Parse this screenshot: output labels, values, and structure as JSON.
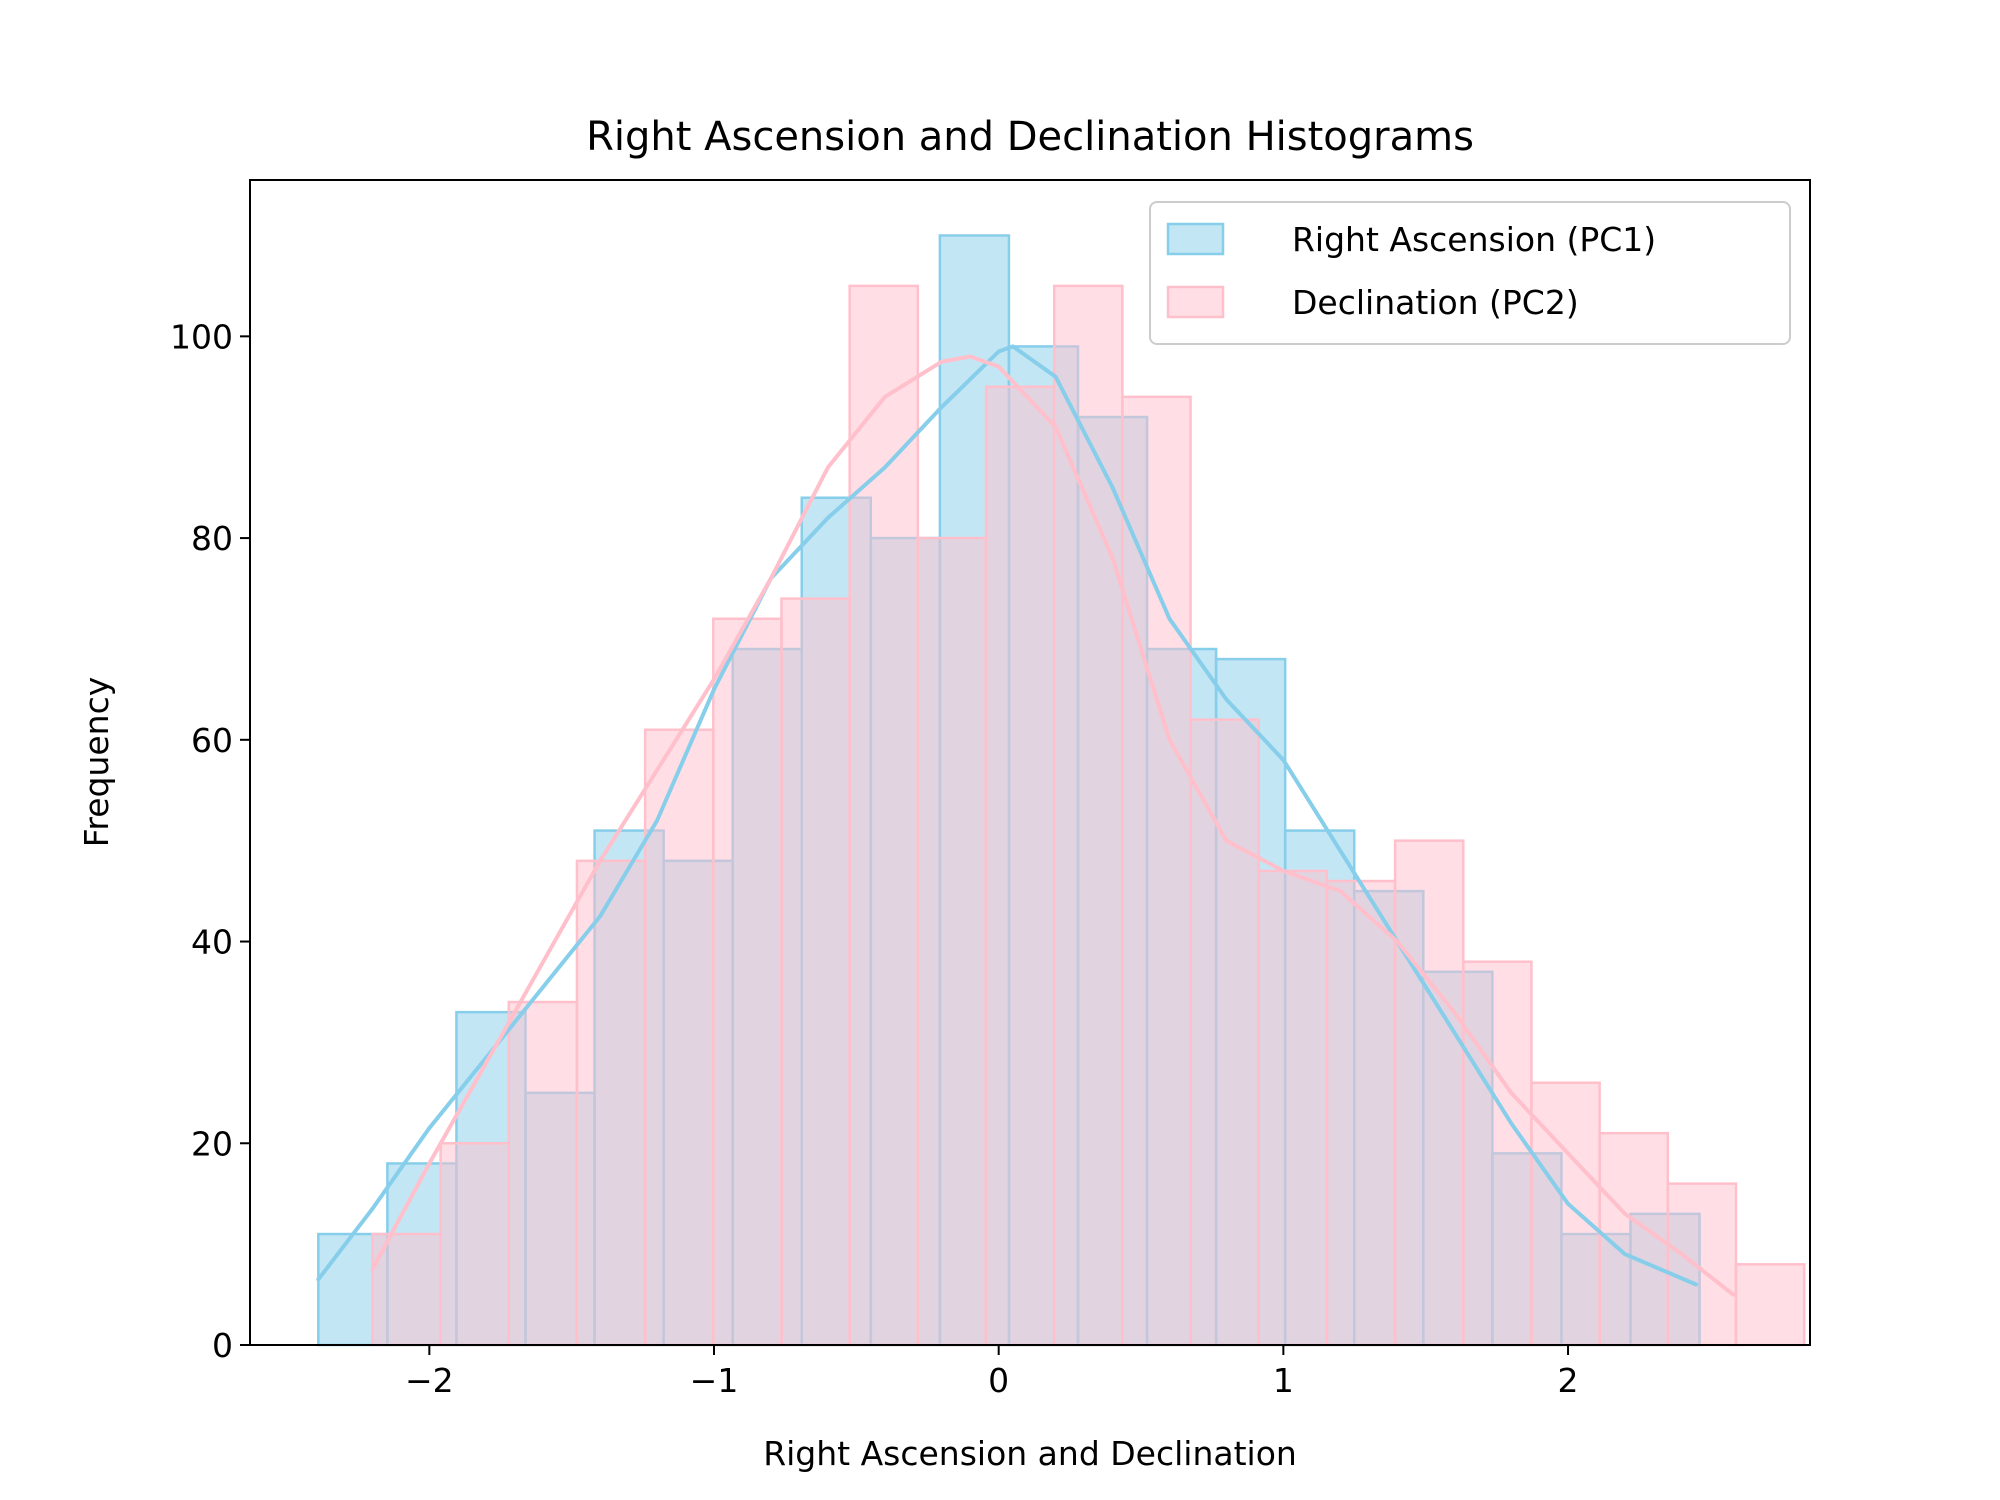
{
  "chart_data": {
    "type": "bar",
    "title": "Right Ascension and Declination Histograms",
    "xlabel": "Right Ascension and Declination",
    "ylabel": "Frequency",
    "xlim": [
      -2.63,
      2.85
    ],
    "ylim": [
      0,
      115.5
    ],
    "x_ticks": [
      -2,
      -1,
      0,
      1,
      2
    ],
    "x_tick_labels": [
      "−2",
      "−1",
      "0",
      "1",
      "2"
    ],
    "y_ticks": [
      0,
      20,
      40,
      60,
      80,
      100
    ],
    "y_tick_labels": [
      "0",
      "20",
      "40",
      "60",
      "80",
      "100"
    ],
    "grid": false,
    "legend": "top-right",
    "series": [
      {
        "name": "Right Ascension (PC1)",
        "color": "#87ceeb",
        "bin_start": -2.39,
        "bin_width": 0.2426,
        "values": [
          11,
          18,
          33,
          25,
          51,
          48,
          69,
          84,
          80,
          110,
          99,
          92,
          69,
          68,
          51,
          45,
          37,
          19,
          11,
          13
        ],
        "kde_x": [
          -2.39,
          -2.2,
          -2.0,
          -1.8,
          -1.6,
          -1.4,
          -1.2,
          -1.0,
          -0.8,
          -0.6,
          -0.4,
          -0.2,
          0.0,
          0.05,
          0.2,
          0.4,
          0.6,
          0.8,
          1.0,
          1.2,
          1.4,
          1.6,
          1.8,
          2.0,
          2.2,
          2.45
        ],
        "kde_y": [
          6.5,
          13.5,
          21.5,
          28.5,
          35.5,
          42.5,
          52,
          65,
          76,
          82,
          87,
          93,
          98.5,
          99,
          96,
          85,
          72,
          64,
          58,
          49,
          40,
          31,
          22,
          14,
          9,
          6
        ]
      },
      {
        "name": "Declination (PC2)",
        "color": "#ffc0cb",
        "bin_start": -2.2,
        "bin_width": 0.2395,
        "values": [
          11,
          20,
          34,
          48,
          61,
          72,
          74,
          105,
          80,
          95,
          105,
          94,
          62,
          47,
          46,
          50,
          38,
          26,
          21,
          16,
          8
        ],
        "kde_x": [
          -2.2,
          -2.0,
          -1.8,
          -1.6,
          -1.4,
          -1.2,
          -1.0,
          -0.8,
          -0.6,
          -0.4,
          -0.2,
          -0.1,
          0.0,
          0.2,
          0.4,
          0.6,
          0.8,
          1.0,
          1.2,
          1.4,
          1.6,
          1.8,
          2.0,
          2.2,
          2.4,
          2.58
        ],
        "kde_y": [
          7.5,
          18,
          28,
          38,
          48,
          57,
          66,
          76,
          87,
          94,
          97.5,
          98,
          97,
          91,
          78,
          60,
          50,
          47,
          45,
          40,
          33,
          25,
          19,
          13,
          9,
          5
        ]
      }
    ]
  }
}
